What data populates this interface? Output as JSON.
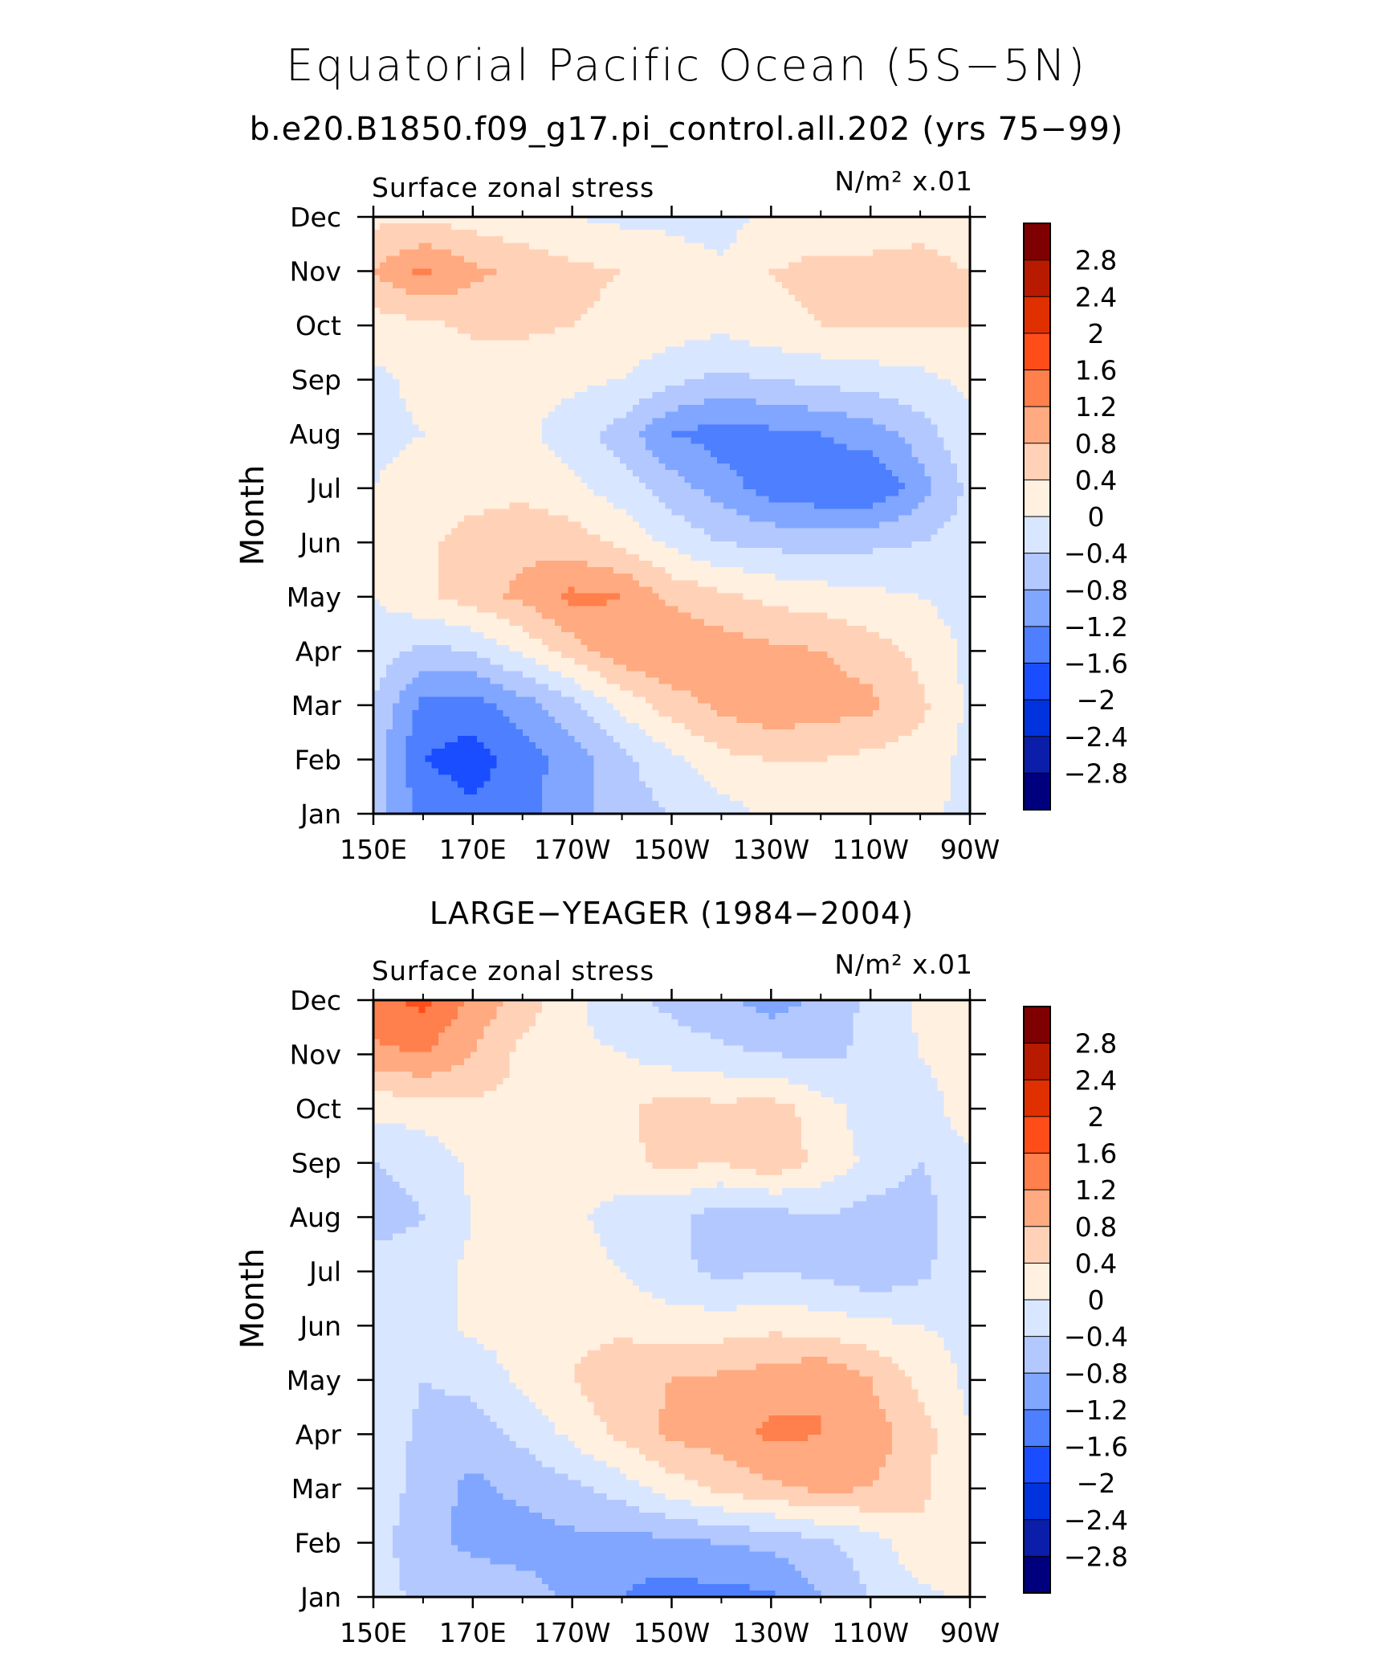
{
  "title": "Equatorial Pacific Ocean (5S−5N)",
  "subtitle": "b.e20.B1850.f09_g17.pi_control.all.202 (yrs 75−99)",
  "colorbar": {
    "colors": [
      "#00007f",
      "#0a1eaa",
      "#0033dd",
      "#1a4dff",
      "#4d7fff",
      "#80a6ff",
      "#b3c8ff",
      "#d9e6ff",
      "#fff0e0",
      "#ffd2b8",
      "#ffaa80",
      "#ff7f4d",
      "#ff4d1a",
      "#e03000",
      "#b81a00",
      "#7f0000"
    ],
    "labels": [
      "2.8",
      "2.4",
      "2",
      "1.6",
      "1.2",
      "0.8",
      "0.4",
      "0",
      "−0.4",
      "−0.8",
      "−1.2",
      "−1.6",
      "−2",
      "−2.4",
      "−2.8"
    ]
  },
  "chart_data": [
    {
      "type": "heatmap",
      "title": "",
      "left_label": "Surface zonal stress",
      "right_label": "N/m² x.01",
      "xlabel": "",
      "ylabel": "Month",
      "x_ticks": [
        "150E",
        "170E",
        "170W",
        "150W",
        "130W",
        "110W",
        "90W"
      ],
      "x_degE": [
        150,
        170,
        190,
        210,
        230,
        250,
        270
      ],
      "xlim": [
        150,
        270
      ],
      "y_ticks": [
        "Jan",
        "Feb",
        "Mar",
        "Apr",
        "May",
        "Jun",
        "Jul",
        "Aug",
        "Sep",
        "Oct",
        "Nov",
        "Dec"
      ],
      "levels": [
        -2.8,
        -2.4,
        -2,
        -1.6,
        -1.2,
        -0.8,
        -0.4,
        0,
        0.4,
        0.8,
        1.2,
        1.6,
        2,
        2.4,
        2.8
      ],
      "grid_x_degE": [
        150,
        160,
        170,
        180,
        190,
        200,
        210,
        220,
        230,
        240,
        250,
        260,
        270
      ],
      "values": [
        [
          -0.6,
          -1.3,
          -1.5,
          -1.3,
          -1.0,
          -0.6,
          -0.4,
          -0.2,
          0.1,
          0.2,
          0.2,
          0.1,
          -0.1
        ],
        [
          -0.6,
          -1.6,
          -1.8,
          -1.4,
          -1.0,
          -0.5,
          -0.1,
          0.3,
          0.4,
          0.4,
          0.3,
          0.2,
          -0.1
        ],
        [
          -0.4,
          -1.3,
          -1.4,
          -1.0,
          -0.5,
          0.1,
          0.6,
          0.9,
          1.1,
          1.0,
          0.9,
          0.5,
          -0.1
        ],
        [
          -0.2,
          -0.5,
          -0.4,
          0.1,
          0.6,
          1.1,
          1.2,
          1.0,
          0.9,
          0.8,
          0.6,
          0.3,
          -0.1
        ],
        [
          0.0,
          0.3,
          0.6,
          0.9,
          1.3,
          1.2,
          0.7,
          0.5,
          0.3,
          0.2,
          0.1,
          0.0,
          -0.2
        ],
        [
          0.0,
          0.3,
          0.6,
          0.7,
          0.6,
          0.3,
          -0.1,
          -0.4,
          -0.5,
          -0.6,
          -0.5,
          -0.4,
          -0.2
        ],
        [
          0.0,
          0.2,
          0.2,
          0.3,
          0.1,
          -0.2,
          -0.6,
          -1.0,
          -1.4,
          -1.5,
          -1.6,
          -1.0,
          -0.3
        ],
        [
          -0.1,
          0.0,
          0.0,
          0.1,
          -0.2,
          -0.6,
          -1.2,
          -1.4,
          -1.3,
          -1.2,
          -1.0,
          -0.6,
          -0.1
        ],
        [
          -0.1,
          0.1,
          0.1,
          0.1,
          0.1,
          0.0,
          -0.3,
          -0.5,
          -0.4,
          -0.3,
          -0.2,
          -0.1,
          0.1
        ],
        [
          0.2,
          0.3,
          0.5,
          0.5,
          0.4,
          0.3,
          0.2,
          0.1,
          0.3,
          0.4,
          0.4,
          0.4,
          0.4
        ],
        [
          0.8,
          1.3,
          0.9,
          0.7,
          0.5,
          0.4,
          0.2,
          0.1,
          0.4,
          0.5,
          0.5,
          0.5,
          0.4
        ],
        [
          0.3,
          0.3,
          0.2,
          0.1,
          0.0,
          -0.1,
          -0.1,
          -0.2,
          0.1,
          0.2,
          0.2,
          0.3,
          0.2
        ]
      ]
    },
    {
      "type": "heatmap",
      "title": "LARGE−YEAGER (1984−2004)",
      "left_label": "Surface zonal stress",
      "right_label": "N/m² x.01",
      "xlabel": "",
      "ylabel": "Month",
      "x_ticks": [
        "150E",
        "170E",
        "170W",
        "150W",
        "130W",
        "110W",
        "90W"
      ],
      "x_degE": [
        150,
        170,
        190,
        210,
        230,
        250,
        270
      ],
      "xlim": [
        150,
        270
      ],
      "y_ticks": [
        "Jan",
        "Feb",
        "Mar",
        "Apr",
        "May",
        "Jun",
        "Jul",
        "Aug",
        "Sep",
        "Oct",
        "Nov",
        "Dec"
      ],
      "levels": [
        -2.8,
        -2.4,
        -2,
        -1.6,
        -1.2,
        -0.8,
        -0.4,
        0,
        0.4,
        0.8,
        1.2,
        1.6,
        2,
        2.4,
        2.8
      ],
      "grid_x_degE": [
        150,
        160,
        170,
        180,
        190,
        200,
        210,
        220,
        230,
        240,
        250,
        260,
        270
      ],
      "values": [
        [
          -0.1,
          -0.6,
          -0.5,
          -0.6,
          -0.9,
          -1.2,
          -1.4,
          -1.3,
          -1.3,
          -0.8,
          -0.4,
          -0.1,
          0.1
        ],
        [
          -0.2,
          -0.7,
          -0.9,
          -1.0,
          -0.9,
          -1.0,
          -0.9,
          -0.8,
          -0.7,
          -0.5,
          -0.2,
          0.3,
          0.1
        ],
        [
          -0.1,
          -0.6,
          -0.9,
          -0.7,
          -0.5,
          -0.2,
          0.2,
          0.5,
          0.7,
          0.9,
          0.8,
          0.5,
          0.0
        ],
        [
          -0.1,
          -0.5,
          -0.6,
          -0.3,
          0.1,
          0.5,
          0.9,
          1.0,
          1.3,
          1.2,
          1.0,
          0.6,
          0.0
        ],
        [
          -0.1,
          -0.4,
          -0.3,
          0.1,
          0.4,
          0.7,
          0.8,
          0.9,
          1.0,
          1.2,
          0.8,
          0.3,
          -0.1
        ],
        [
          -0.1,
          -0.2,
          0.1,
          0.2,
          0.3,
          0.3,
          0.2,
          0.2,
          0.3,
          0.2,
          0.1,
          0.0,
          -0.1
        ],
        [
          -0.2,
          -0.2,
          0.1,
          0.2,
          0.2,
          0.0,
          -0.3,
          -0.5,
          -0.4,
          -0.5,
          -0.7,
          -0.5,
          -0.1
        ],
        [
          -0.6,
          -0.4,
          0.0,
          0.2,
          0.1,
          -0.2,
          -0.3,
          -0.6,
          -0.6,
          -0.4,
          -0.6,
          -0.6,
          -0.1
        ],
        [
          -0.4,
          -0.3,
          0.1,
          0.3,
          0.2,
          0.3,
          0.5,
          0.4,
          0.7,
          0.3,
          -0.1,
          -0.4,
          -0.1
        ],
        [
          0.1,
          0.2,
          0.3,
          0.3,
          0.2,
          0.3,
          0.6,
          0.5,
          0.6,
          0.2,
          -0.2,
          -0.3,
          0.3
        ],
        [
          1.1,
          1.2,
          0.8,
          0.3,
          0.1,
          0.0,
          -0.2,
          -0.3,
          -0.4,
          -0.5,
          -0.3,
          0.0,
          0.3
        ],
        [
          1.5,
          1.7,
          1.1,
          0.6,
          0.1,
          -0.3,
          -0.5,
          -0.7,
          -1.0,
          -0.7,
          -0.3,
          0.1,
          0.1
        ]
      ]
    }
  ]
}
